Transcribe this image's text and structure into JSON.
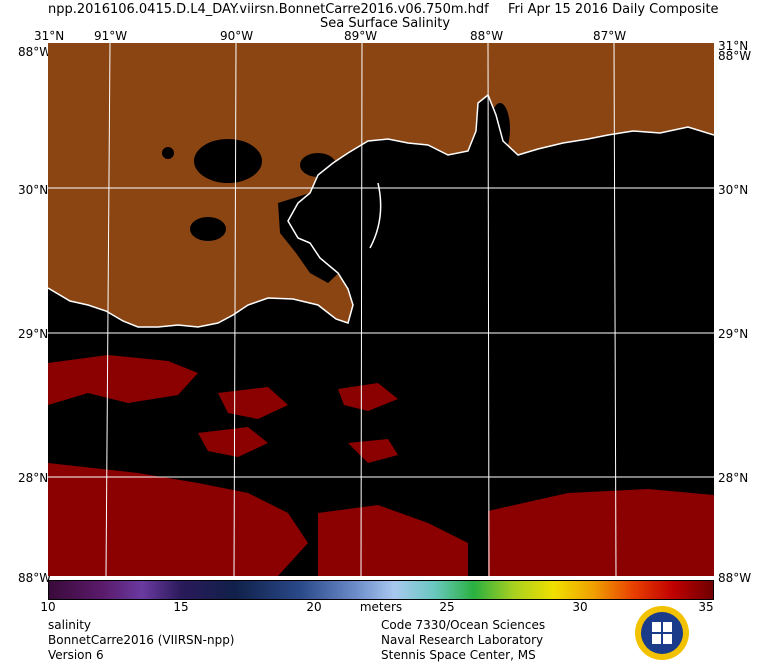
{
  "header": {
    "filename": "npp.2016106.0415.D.L4_DAY.viirsn.BonnetCarre2016.v06.750m.hdf",
    "date": "Fri Apr 15 2016 Daily Composite",
    "product": "Sea Surface Salinity"
  },
  "map": {
    "lon_labels": [
      "91°W",
      "90°W",
      "89°W",
      "88°W",
      "87°W"
    ],
    "lat_labels": [
      "30°N",
      "29°N",
      "28°N"
    ],
    "corner_labels": {
      "top_left": "31°N",
      "top_left_w": "88°W",
      "top_right": "31°N",
      "top_right_w": "88°W",
      "bottom_left": "88°W",
      "bottom_left_w": "88°W",
      "bottom_right": "88°W",
      "bottom_right_w": "88°W"
    },
    "colors": {
      "land": "#8b4513",
      "water": "#000000",
      "high_salinity": "#8b0000",
      "grid": "#ffffff"
    }
  },
  "colorbar": {
    "ticks": [
      "10",
      "15",
      "20",
      "25",
      "30",
      "35"
    ],
    "units": "meters",
    "range": [
      10,
      35
    ]
  },
  "footer": {
    "left": [
      "salinity",
      "BonnetCarre2016 (VIIRSN-npp)",
      "Version 6"
    ],
    "right": [
      "Code 7330/Ocean Sciences",
      "Naval Research Laboratory",
      "Stennis Space Center, MS"
    ]
  }
}
